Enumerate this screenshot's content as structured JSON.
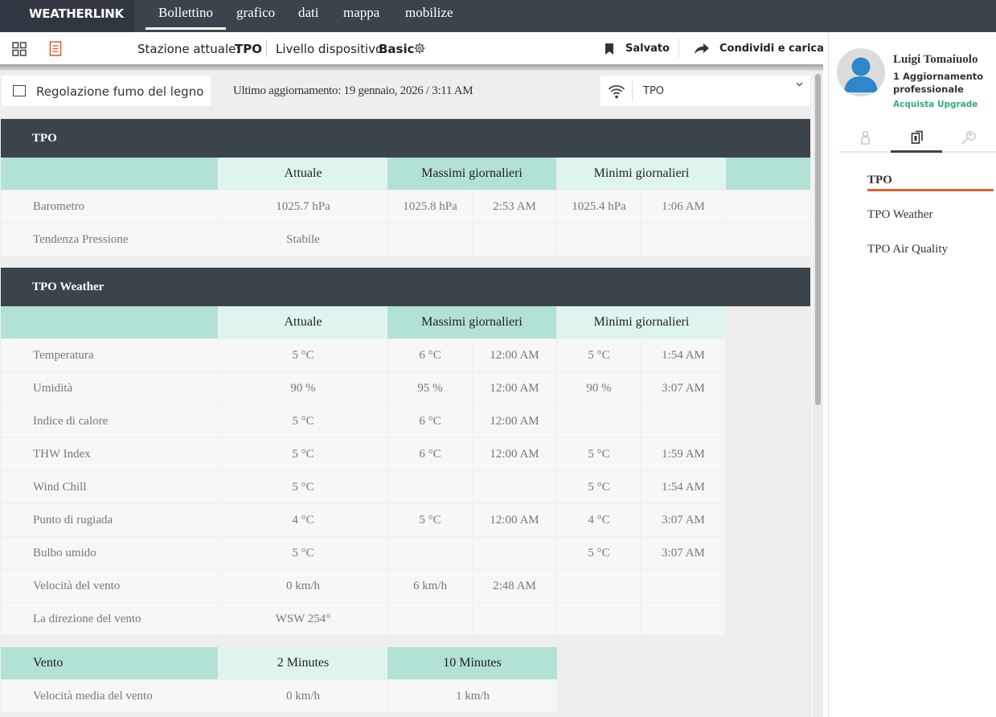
{
  "nav": {
    "brand": "WEATHERLINK",
    "tabs": [
      "Bollettino",
      "grafico",
      "dati",
      "mappa",
      "mobilize"
    ]
  },
  "toolbar": {
    "station_label": "Stazione attuale:",
    "station_value": "TPO",
    "level_label": "Livello dispositivo:",
    "level_value": "Basic",
    "saved_label": "Salvato",
    "share_label": "Condividi e carica"
  },
  "filters": {
    "wood_smoke_label": "Regolazione fumo del legno",
    "last_update": "Ultimo aggiornamento: 19 gennaio, 2026 / 3:11 AM",
    "station_select": "TPO"
  },
  "colors": {
    "header": "#3b444b",
    "teal": "#b2e1d5",
    "accent": "#e0622c",
    "upgrade": "#2fae7a"
  },
  "sections": {
    "tpo": {
      "title": "TPO",
      "headers": [
        "Attuale",
        "Massimi giornalieri",
        "Minimi giornalieri"
      ],
      "rows": [
        {
          "label": "Barometro",
          "current": "1025.7 hPa",
          "hi": "1025.8 hPa",
          "hi_time": "2:53 AM",
          "lo": "1025.4 hPa",
          "lo_time": "1:06 AM"
        },
        {
          "label": "Tendenza Pressione",
          "current": "Stabile",
          "hi": "",
          "hi_time": "",
          "lo": "",
          "lo_time": ""
        }
      ]
    },
    "weather": {
      "title": "TPO Weather",
      "headers": [
        "Attuale",
        "Massimi giornalieri",
        "Minimi giornalieri"
      ],
      "rows": [
        {
          "label": "Temperatura",
          "current": "5 °C",
          "hi": "6 °C",
          "hi_time": "12:00 AM",
          "lo": "5 °C",
          "lo_time": "1:54 AM"
        },
        {
          "label": "Umidità",
          "current": "90 %",
          "hi": "95 %",
          "hi_time": "12:00 AM",
          "lo": "90 %",
          "lo_time": "3:07 AM"
        },
        {
          "label": "Indice di calore",
          "current": "5 °C",
          "hi": "6 °C",
          "hi_time": "12:00 AM",
          "lo": "",
          "lo_time": ""
        },
        {
          "label": "THW Index",
          "current": "5 °C",
          "hi": "6 °C",
          "hi_time": "12:00 AM",
          "lo": "5 °C",
          "lo_time": "1:59 AM"
        },
        {
          "label": "Wind Chill",
          "current": "5 °C",
          "hi": "",
          "hi_time": "",
          "lo": "5 °C",
          "lo_time": "1:54 AM"
        },
        {
          "label": "Punto di rugiada",
          "current": "4 °C",
          "hi": "5 °C",
          "hi_time": "12:00 AM",
          "lo": "4 °C",
          "lo_time": "3:07 AM"
        },
        {
          "label": "Bulbo umido",
          "current": "5 °C",
          "hi": "",
          "hi_time": "",
          "lo": "5 °C",
          "lo_time": "3:07 AM"
        },
        {
          "label": "Velocità del vento",
          "current": "0 km/h",
          "hi": "6 km/h",
          "hi_time": "2:48 AM",
          "lo": "",
          "lo_time": ""
        },
        {
          "label": "La direzione del vento",
          "current": "WSW 254°",
          "hi": "",
          "hi_time": "",
          "lo": "",
          "lo_time": ""
        }
      ]
    },
    "wind": {
      "title": "Vento",
      "headers": [
        "2 Minutes",
        "10 Minutes"
      ],
      "rows": [
        {
          "label": "Velocità media del vento",
          "m2": "0 km/h",
          "m10": "1 km/h"
        }
      ]
    }
  },
  "user": {
    "name": "Luigi Tomaiuolo",
    "plan_line1": "1 Aggiornamento",
    "plan_line2": "professionale",
    "upgrade": "Acquista Upgrade"
  },
  "stations": [
    "TPO",
    "TPO Weather",
    "TPO Air Quality"
  ]
}
